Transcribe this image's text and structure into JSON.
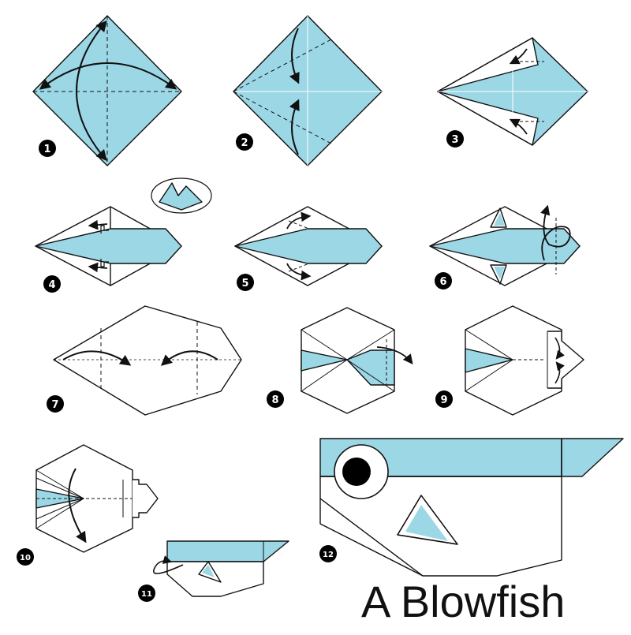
{
  "title": "A Blowfish",
  "colors": {
    "paper_blue": "#9cd7e6",
    "paper_white": "#ffffff",
    "line": "#111111",
    "badge": "#000000"
  },
  "steps": [
    {
      "number": "1"
    },
    {
      "number": "2"
    },
    {
      "number": "3"
    },
    {
      "number": "4"
    },
    {
      "number": "5"
    },
    {
      "number": "6"
    },
    {
      "number": "7"
    },
    {
      "number": "8"
    },
    {
      "number": "9"
    },
    {
      "number": "10"
    },
    {
      "number": "11"
    },
    {
      "number": "12"
    }
  ]
}
